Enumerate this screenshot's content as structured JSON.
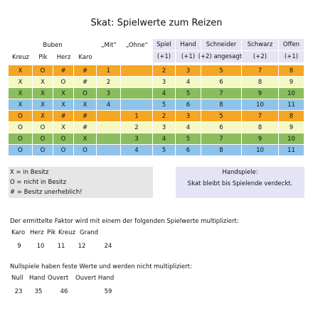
{
  "title": "Skat: Spielwerte zum Reizen",
  "table": {
    "header_top": [
      "Buben",
      "„Mit“",
      "„Ohne“",
      "Spiel",
      "Hand",
      "Schneider",
      "Schwarz",
      "Offen"
    ],
    "header_sub": [
      "Kreuz",
      "Pik",
      "Herz",
      "Karo",
      null,
      null,
      "(+1)",
      "(+1)",
      "(+2) angesagt!",
      "(+2)",
      "(+1)"
    ],
    "rows": [
      [
        "X",
        "O",
        "#",
        "#",
        1,
        null,
        2,
        3,
        5,
        7,
        8
      ],
      [
        "X",
        "X",
        "O",
        "#",
        2,
        null,
        3,
        4,
        6,
        8,
        9
      ],
      [
        "X",
        "X",
        "X",
        "O",
        3,
        null,
        4,
        5,
        7,
        9,
        10
      ],
      [
        "X",
        "X",
        "X",
        "X",
        4,
        null,
        5,
        6,
        8,
        10,
        11
      ],
      [
        "O",
        "X",
        "#",
        "#",
        null,
        1,
        2,
        3,
        5,
        7,
        8
      ],
      [
        "O",
        "O",
        "X",
        "#",
        null,
        2,
        3,
        4,
        6,
        8,
        9
      ],
      [
        "O",
        "O",
        "O",
        "X",
        null,
        3,
        4,
        5,
        7,
        9,
        10
      ],
      [
        "O",
        "O",
        "O",
        "O",
        null,
        4,
        5,
        6,
        8,
        10,
        11
      ]
    ]
  },
  "legend": {
    "items": [
      "X = in Besitz",
      "O = nicht in Besitz",
      "# = Besitz unerheblich!"
    ],
    "hand_title": "Handspiele:",
    "hand_note": "Skat bleibt bis Spielende verdeckt."
  },
  "multipliers": {
    "text": "Der ermittelte Faktor wird mit einem der folgenden Spielwerte multipliziert:",
    "labels": [
      "Karo",
      "Herz",
      "Pik",
      "Kreuz",
      "Grand"
    ],
    "values": [
      9,
      10,
      11,
      12,
      24
    ]
  },
  "null_games": {
    "text": "Nullspiele haben feste Werte und werden nicht multipliziert:",
    "labels": [
      "Null",
      "Hand",
      "Ouvert",
      "Ouvert Hand"
    ],
    "values": [
      23,
      35,
      46,
      59
    ]
  }
}
